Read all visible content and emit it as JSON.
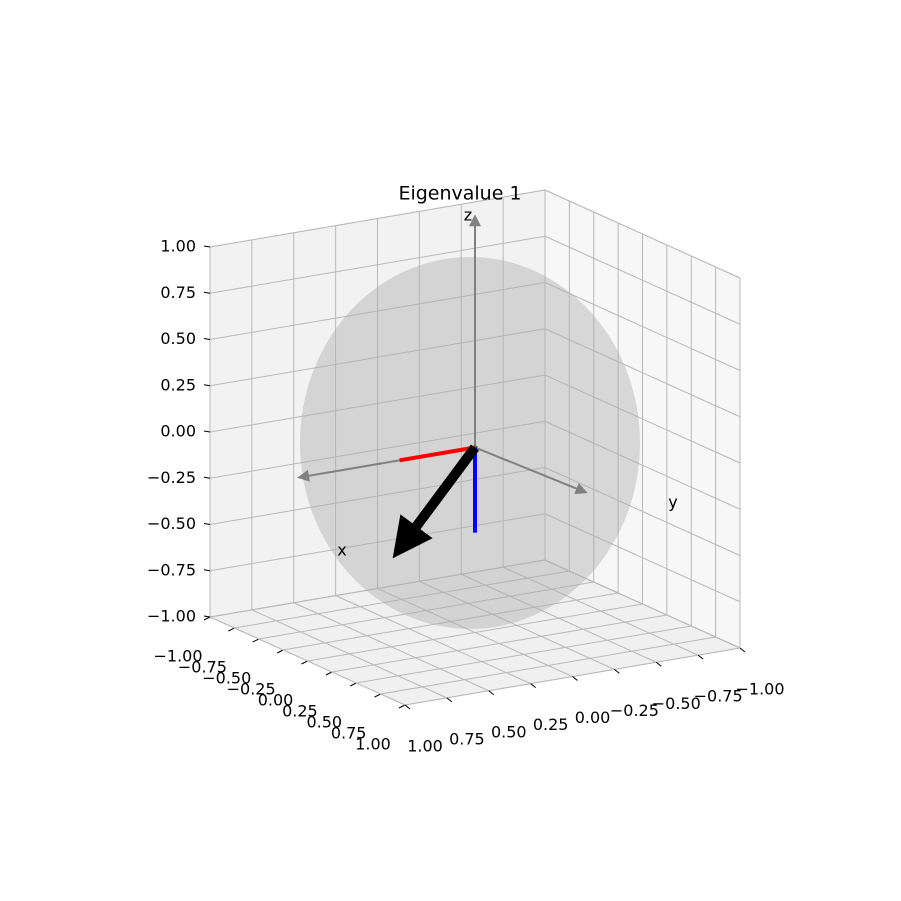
{
  "chart_data": {
    "type": "vector3d",
    "title": "Eigenvalue 1",
    "xlabel": "x",
    "ylabel": "y",
    "zlabel": "z",
    "xlim": [
      -1,
      1
    ],
    "ylim": [
      -1,
      1
    ],
    "zlim": [
      -1,
      1
    ],
    "xticks": [
      {
        "value": -1,
        "label": "−1.00"
      },
      {
        "value": -0.75,
        "label": "−0.75"
      },
      {
        "value": -0.5,
        "label": "−0.50"
      },
      {
        "value": -0.25,
        "label": "−0.25"
      },
      {
        "value": 0,
        "label": "0.00"
      },
      {
        "value": 0.25,
        "label": "0.25"
      },
      {
        "value": 0.5,
        "label": "0.50"
      },
      {
        "value": 0.75,
        "label": "0.75"
      },
      {
        "value": 1,
        "label": "1.00"
      }
    ],
    "yticks": [
      {
        "value": -1,
        "label": "−1.00"
      },
      {
        "value": -0.75,
        "label": "−0.75"
      },
      {
        "value": -0.5,
        "label": "−0.50"
      },
      {
        "value": -0.25,
        "label": "−0.25"
      },
      {
        "value": 0,
        "label": "0.00"
      },
      {
        "value": 0.25,
        "label": "0.25"
      },
      {
        "value": 0.5,
        "label": "0.50"
      },
      {
        "value": 0.75,
        "label": "0.75"
      },
      {
        "value": 1,
        "label": "1.00"
      }
    ],
    "zticks": [
      {
        "value": -1,
        "label": "−1.00"
      },
      {
        "value": -0.75,
        "label": "−0.75"
      },
      {
        "value": -0.5,
        "label": "−0.50"
      },
      {
        "value": -0.25,
        "label": "−0.25"
      },
      {
        "value": 0,
        "label": "0.00"
      },
      {
        "value": 0.25,
        "label": "0.25"
      },
      {
        "value": 0.5,
        "label": "0.50"
      },
      {
        "value": 0.75,
        "label": "0.75"
      },
      {
        "value": 1,
        "label": "1.00"
      }
    ],
    "grid": true,
    "series": [
      {
        "color": "#ff0000",
        "values": [
          0,
          0.45,
          0
        ]
      },
      {
        "color": "#008000",
        "values": [
          0.02,
          0,
          0
        ]
      },
      {
        "color": "#0000ff",
        "values": [
          0,
          0,
          -0.46
        ]
      },
      {
        "color": "#000000",
        "values": [
          0.02,
          0.45,
          -0.46
        ]
      }
    ]
  }
}
